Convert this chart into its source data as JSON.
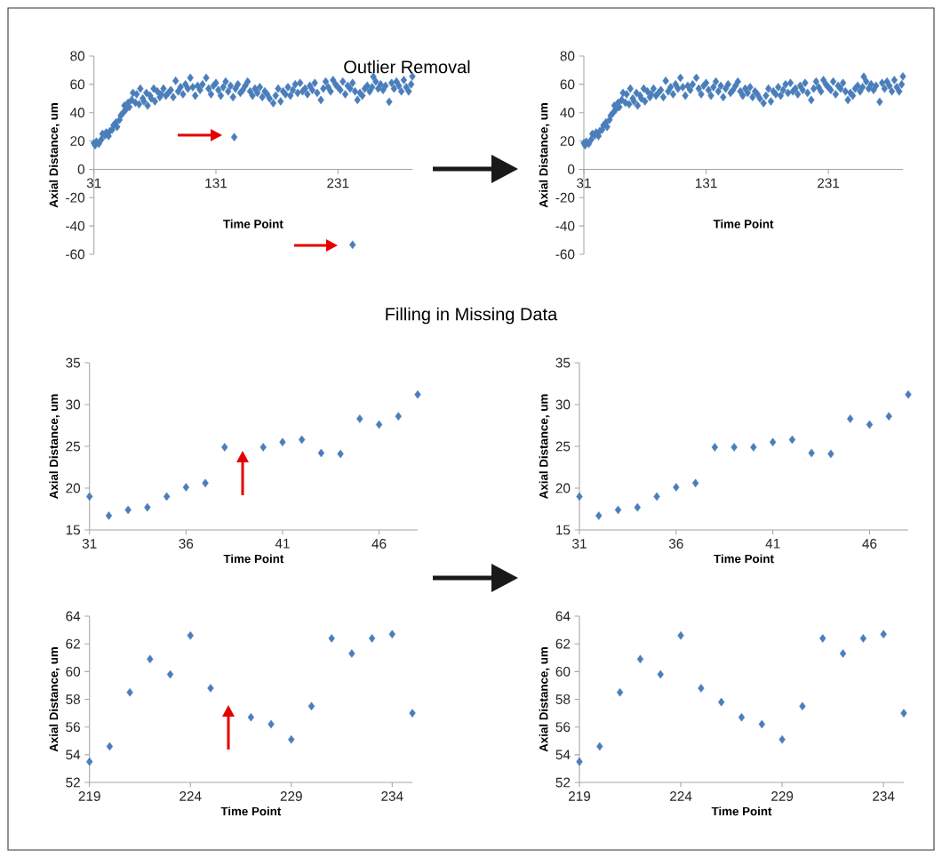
{
  "chart_data": [
    {
      "type": "scatter",
      "title": "Outlier Removal",
      "xlabel": "Time Point",
      "ylabel": "Axial Distance, um",
      "color": "#4a7ebb",
      "marker": "diamond",
      "x": [
        31,
        32,
        33,
        35,
        37,
        38,
        40,
        41,
        43,
        44,
        46,
        47,
        49,
        50,
        52,
        53,
        55,
        56,
        57,
        59,
        60,
        62,
        63,
        65,
        66,
        68,
        69,
        71,
        72,
        74,
        75,
        77,
        78,
        80,
        81,
        83,
        85,
        86,
        88,
        90,
        92,
        94,
        96,
        98,
        100,
        102,
        104,
        106,
        108,
        110,
        112,
        114,
        116,
        118,
        120,
        123,
        125,
        127,
        129,
        131,
        133,
        135,
        137,
        139,
        141,
        143,
        145,
        146,
        147,
        149,
        151,
        153,
        155,
        157,
        159,
        161,
        163,
        165,
        167,
        169,
        171,
        173,
        175,
        178,
        180,
        182,
        184,
        186,
        188,
        190,
        192,
        194,
        196,
        198,
        200,
        202,
        204,
        206,
        208,
        210,
        212,
        214,
        217,
        219,
        221,
        223,
        225,
        227,
        229,
        231,
        233,
        235,
        237,
        239,
        241,
        243,
        243,
        245,
        247,
        249,
        251,
        253,
        255,
        257,
        259,
        260,
        262,
        264,
        266,
        268,
        270,
        273,
        275,
        277,
        279,
        281,
        283,
        285,
        287,
        289,
        291,
        292
      ],
      "values": [
        18.5,
        17,
        19.5,
        18,
        21,
        25,
        24,
        26,
        23.5,
        27,
        28,
        31,
        33,
        30,
        35,
        38,
        40,
        45,
        42,
        47,
        44,
        49,
        54,
        47,
        53,
        46,
        57,
        50,
        48,
        54,
        45,
        52,
        50,
        57,
        48,
        55,
        51,
        53,
        57,
        52,
        54,
        56,
        51,
        62.5,
        55,
        58,
        53,
        60,
        57,
        64.6,
        58,
        52,
        59,
        56,
        60,
        64.6,
        57,
        53,
        59,
        61,
        56,
        52,
        58,
        62,
        55,
        59,
        51,
        22.7,
        57,
        60,
        54,
        56,
        59,
        62,
        55,
        52,
        57,
        54,
        58,
        51,
        55,
        53,
        50,
        46.7,
        52,
        57,
        48,
        55,
        53,
        58,
        52,
        56,
        60,
        54,
        61,
        55,
        57,
        53,
        59,
        56,
        61,
        54,
        49,
        57,
        62,
        58,
        55,
        63,
        60,
        58,
        56,
        62,
        53,
        59,
        57,
        61,
        -53.3,
        55,
        49,
        54,
        52,
        57,
        59,
        55,
        58,
        65.4,
        62,
        57,
        60,
        56,
        59,
        47.7,
        61,
        57,
        62,
        59,
        55,
        63,
        58,
        55,
        60,
        65.6
      ],
      "xlim": [
        31,
        292
      ],
      "ylim": [
        -60,
        80
      ],
      "xticks": [
        31,
        131,
        231
      ],
      "yticks": [
        -60,
        -40,
        -20,
        0,
        20,
        40,
        60,
        80
      ]
    },
    {
      "type": "scatter",
      "xlabel": "Time Point",
      "ylabel": "Axial Distance, um",
      "color": "#4a7ebb",
      "marker": "diamond",
      "x": [
        31,
        32,
        33,
        35,
        37,
        38,
        40,
        41,
        43,
        44,
        46,
        47,
        49,
        50,
        52,
        53,
        55,
        56,
        57,
        59,
        60,
        62,
        63,
        65,
        66,
        68,
        69,
        71,
        72,
        74,
        75,
        77,
        78,
        80,
        81,
        83,
        85,
        86,
        88,
        90,
        92,
        94,
        96,
        98,
        100,
        102,
        104,
        106,
        108,
        110,
        112,
        114,
        116,
        118,
        120,
        123,
        125,
        127,
        129,
        131,
        133,
        135,
        137,
        139,
        141,
        143,
        145,
        147,
        149,
        151,
        153,
        155,
        157,
        159,
        161,
        163,
        165,
        167,
        169,
        171,
        173,
        175,
        178,
        180,
        182,
        184,
        186,
        188,
        190,
        192,
        194,
        196,
        198,
        200,
        202,
        204,
        206,
        208,
        210,
        212,
        214,
        217,
        219,
        221,
        223,
        225,
        227,
        229,
        231,
        233,
        235,
        237,
        239,
        241,
        243,
        245,
        247,
        249,
        251,
        253,
        255,
        257,
        259,
        260,
        262,
        264,
        266,
        268,
        270,
        273,
        275,
        277,
        279,
        281,
        283,
        285,
        287,
        289,
        291,
        292
      ],
      "values": [
        18.5,
        17,
        19.5,
        18,
        21,
        25,
        24,
        26,
        23.5,
        27,
        28,
        31,
        33,
        30,
        35,
        38,
        40,
        45,
        42,
        47,
        44,
        49,
        54,
        47,
        53,
        46,
        57,
        50,
        48,
        54,
        45,
        52,
        50,
        57,
        48,
        55,
        51,
        53,
        57,
        52,
        54,
        56,
        51,
        62.5,
        55,
        58,
        53,
        60,
        57,
        64.6,
        58,
        52,
        59,
        56,
        60,
        64.6,
        57,
        53,
        59,
        61,
        56,
        52,
        58,
        62,
        55,
        59,
        51,
        57,
        60,
        54,
        56,
        59,
        62,
        55,
        52,
        57,
        54,
        58,
        51,
        55,
        53,
        50,
        46.7,
        52,
        57,
        48,
        55,
        53,
        58,
        52,
        56,
        60,
        54,
        61,
        55,
        57,
        53,
        59,
        56,
        61,
        54,
        49,
        57,
        62,
        58,
        55,
        63,
        60,
        58,
        56,
        62,
        53,
        59,
        57,
        61,
        55,
        49,
        54,
        52,
        57,
        59,
        55,
        58,
        65.4,
        62,
        57,
        60,
        56,
        59,
        47.7,
        61,
        57,
        62,
        59,
        55,
        63,
        58,
        55,
        60,
        65.6
      ],
      "xlim": [
        31,
        292
      ],
      "ylim": [
        -60,
        80
      ],
      "xticks": [
        31,
        131,
        231
      ],
      "yticks": [
        -60,
        -40,
        -20,
        0,
        20,
        40,
        60,
        80
      ]
    },
    {
      "type": "scatter",
      "title": "Filling in Missing Data",
      "xlabel": "Time Point",
      "ylabel": "Axial Distance, um",
      "color": "#4a7ebb",
      "marker": "diamond",
      "x": [
        31,
        32,
        33,
        34,
        35,
        36,
        37,
        38,
        40,
        41,
        42,
        43,
        44,
        45,
        46,
        47,
        48
      ],
      "values": [
        19.0,
        16.7,
        17.4,
        17.7,
        19.0,
        20.1,
        20.6,
        24.9,
        24.9,
        25.5,
        25.8,
        24.2,
        24.1,
        28.3,
        27.6,
        28.6,
        31.2
      ],
      "xlim": [
        31,
        48
      ],
      "ylim": [
        15,
        35
      ],
      "xticks": [
        31,
        36,
        41,
        46
      ],
      "yticks": [
        15,
        20,
        25,
        30,
        35
      ]
    },
    {
      "type": "scatter",
      "xlabel": "Time Point",
      "ylabel": "Axial Distance, um",
      "color": "#4a7ebb",
      "marker": "diamond",
      "x": [
        31,
        32,
        33,
        34,
        35,
        36,
        37,
        38,
        39,
        40,
        41,
        42,
        43,
        44,
        45,
        46,
        47,
        48
      ],
      "values": [
        19.0,
        16.7,
        17.4,
        17.7,
        19.0,
        20.1,
        20.6,
        24.9,
        24.9,
        24.9,
        25.5,
        25.8,
        24.2,
        24.1,
        28.3,
        27.6,
        28.6,
        31.2
      ],
      "xlim": [
        31,
        48
      ],
      "ylim": [
        15,
        35
      ],
      "xticks": [
        31,
        36,
        41,
        46
      ],
      "yticks": [
        15,
        20,
        25,
        30,
        35
      ]
    },
    {
      "type": "scatter",
      "xlabel": "Time Point",
      "ylabel": "Axial Distance, um",
      "color": "#4a7ebb",
      "marker": "diamond",
      "x": [
        219,
        220,
        221,
        222,
        223,
        224,
        225,
        227,
        228,
        229,
        230,
        231,
        232,
        233,
        234,
        235
      ],
      "values": [
        53.5,
        54.6,
        58.5,
        60.9,
        59.8,
        62.6,
        58.8,
        56.7,
        56.2,
        55.1,
        57.5,
        62.4,
        61.3,
        62.4,
        62.7,
        57.0
      ],
      "xlim": [
        219,
        235
      ],
      "ylim": [
        52,
        64
      ],
      "xticks": [
        219,
        224,
        229,
        234
      ],
      "yticks": [
        52,
        54,
        56,
        58,
        60,
        62,
        64
      ]
    },
    {
      "type": "scatter",
      "xlabel": "Time Point",
      "ylabel": "Axial Distance, um",
      "color": "#4a7ebb",
      "marker": "diamond",
      "x": [
        219,
        220,
        221,
        222,
        223,
        224,
        225,
        226,
        227,
        228,
        229,
        230,
        231,
        232,
        233,
        234,
        235
      ],
      "values": [
        53.5,
        54.6,
        58.5,
        60.9,
        59.8,
        62.6,
        58.8,
        57.8,
        56.7,
        56.2,
        55.1,
        57.5,
        62.4,
        61.3,
        62.4,
        62.7,
        57.0
      ],
      "xlim": [
        219,
        235
      ],
      "ylim": [
        52,
        64
      ],
      "xticks": [
        219,
        224,
        229,
        234
      ],
      "yticks": [
        52,
        54,
        56,
        58,
        60,
        62,
        64
      ]
    }
  ]
}
